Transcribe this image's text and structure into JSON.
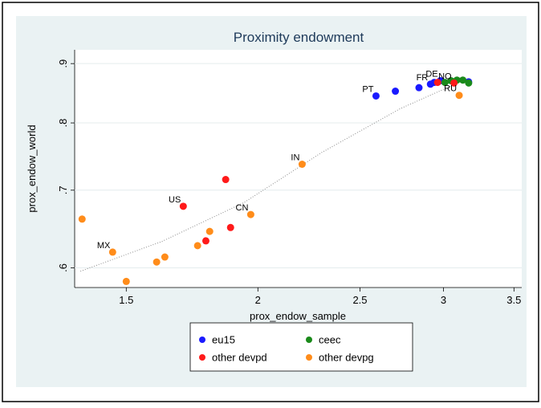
{
  "chart_data": {
    "type": "scatter",
    "title": "Proximity endowment",
    "x_label": "prox_endow_sample",
    "y_label": "prox_endow_world",
    "xscale": "log",
    "yscale": "log",
    "grid": true,
    "xlim": [
      1.34,
      3.56
    ],
    "ylim": [
      0.577,
      0.925
    ],
    "xticks": [
      1.5,
      2,
      2.5,
      3,
      3.5
    ],
    "yticks": [
      {
        "value": 0.6,
        "label": ".6"
      },
      {
        "value": 0.7,
        "label": ".7"
      },
      {
        "value": 0.8,
        "label": ".8"
      },
      {
        "value": 0.9,
        "label": ".9"
      }
    ],
    "legend": "bottom",
    "series": [
      {
        "name": "eu15",
        "color": "#1a1aff",
        "x": [
          2.589,
          2.701,
          2.844,
          2.916,
          2.94,
          2.98,
          3.17
        ],
        "values": [
          0.844,
          0.852,
          0.858,
          0.864,
          0.867,
          0.87,
          0.868
        ],
        "labels": [
          "PT",
          null,
          null,
          "FR",
          null,
          "DE",
          null
        ]
      },
      {
        "name": "ceec",
        "color": "#1a8a1a",
        "x": [
          3.01,
          3.05,
          3.09,
          3.13,
          3.17
        ],
        "values": [
          0.867,
          0.87,
          0.871,
          0.871,
          0.866
        ],
        "labels": [
          null,
          null,
          null,
          null,
          null
        ]
      },
      {
        "name": "other devpd",
        "color": "#ff1a1a",
        "x": [
          1.785,
          1.884,
          1.699,
          1.864,
          2.962,
          3.07
        ],
        "values": [
          0.633,
          0.65,
          0.678,
          0.715,
          0.867,
          0.866
        ],
        "labels": [
          null,
          null,
          "US",
          null,
          null,
          "NO"
        ]
      },
      {
        "name": "other devpg",
        "color": "#ff8c1a",
        "x": [
          1.362,
          1.456,
          1.5,
          1.603,
          1.632,
          1.753,
          1.8,
          1.969,
          2.203,
          3.105
        ],
        "values": [
          0.661,
          0.619,
          0.584,
          0.607,
          0.613,
          0.627,
          0.645,
          0.667,
          0.737,
          0.845
        ],
        "labels": [
          null,
          "MX",
          null,
          null,
          null,
          null,
          null,
          "CN",
          "IN",
          "RU"
        ]
      }
    ],
    "fit": {
      "x": [
        1.357,
        1.62,
        1.94,
        2.297,
        2.73,
        3.13
      ],
      "values": [
        0.596,
        0.632,
        0.683,
        0.754,
        0.823,
        0.87
      ]
    }
  }
}
